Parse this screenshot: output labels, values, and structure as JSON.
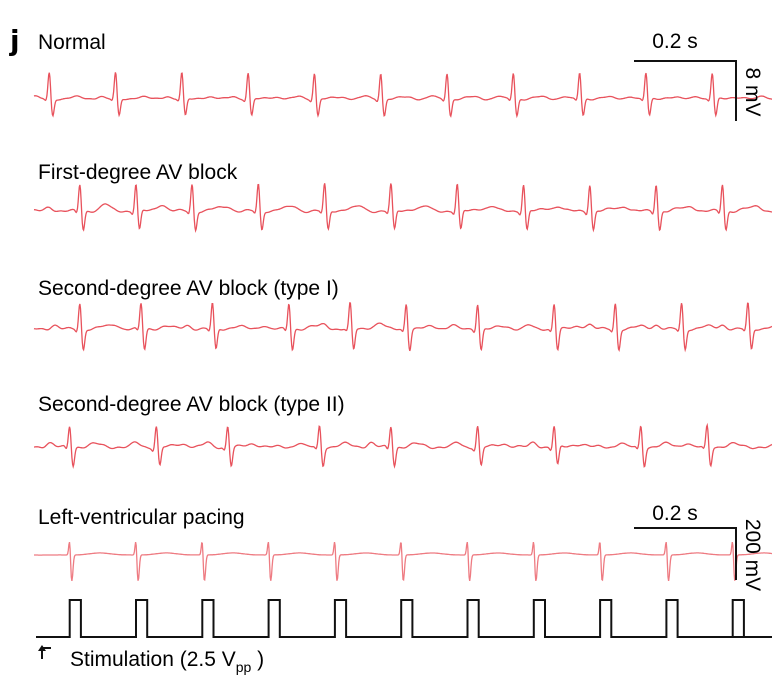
{
  "panel_letter": "j",
  "chart_data": [
    {
      "type": "line",
      "title": "Normal",
      "beat_times_s": [
        0.03,
        0.16,
        0.29,
        0.42,
        0.55,
        0.68,
        0.81,
        0.94,
        1.07,
        1.2,
        1.33,
        1.46,
        1.59
      ],
      "r_amplitude_mV": 4.5,
      "s_amplitude_mV": -3.0,
      "pr_interval_s": 0.03,
      "conducted": [
        true,
        true,
        true,
        true,
        true,
        true,
        true,
        true,
        true,
        true,
        true,
        true,
        true
      ],
      "duration_s": 1.65,
      "scalebar": {
        "time_label": "0.2 s",
        "amp_label": "8 mV"
      }
    },
    {
      "type": "line",
      "title": "First-degree AV block",
      "beat_times_s": [
        0.09,
        0.2,
        0.31,
        0.44,
        0.57,
        0.7,
        0.83,
        0.96,
        1.09,
        1.22,
        1.35,
        1.48,
        1.61
      ],
      "r_amplitude_mV": 3.5,
      "s_amplitude_mV": -2.5,
      "pr_interval_s": 0.06,
      "conducted": [
        true,
        true,
        true,
        true,
        true,
        true,
        true,
        true,
        true,
        true,
        true,
        true,
        true
      ],
      "duration_s": 1.65
    },
    {
      "type": "line",
      "title": "Second-degree AV block (type I)",
      "beat_times_s": [
        0.09,
        0.21,
        0.35,
        0.5,
        0.62,
        0.73,
        0.87,
        1.02,
        1.14,
        1.27,
        1.4,
        1.52
      ],
      "r_amplitude_mV": 3.5,
      "s_amplitude_mV": -2.8,
      "pr_interval_s": 0.05,
      "conducted": [
        true,
        true,
        true,
        true,
        true,
        true,
        true,
        true,
        true,
        true,
        true,
        true
      ],
      "duration_s": 1.65
    },
    {
      "type": "line",
      "title": "Second-degree AV block (type II)",
      "beat_times_s": [
        0.07,
        0.24,
        0.38,
        0.56,
        0.7,
        0.87,
        1.02,
        1.19,
        1.32,
        1.5,
        1.64
      ],
      "r_amplitude_mV": 2.5,
      "s_amplitude_mV": -2.2,
      "pr_interval_s": 0.04,
      "conducted": [
        true,
        true,
        true,
        true,
        true,
        true,
        true,
        true,
        true,
        true,
        true
      ],
      "duration_s": 1.65
    },
    {
      "type": "line",
      "title": "Left-ventricular pacing",
      "beat_times_s": [
        0.07,
        0.2,
        0.33,
        0.46,
        0.59,
        0.72,
        0.85,
        0.98,
        1.11,
        1.24,
        1.37,
        1.5,
        1.63
      ],
      "r_amplitude_mV": 50,
      "s_amplitude_mV": -80,
      "duration_s": 1.65,
      "scalebar": {
        "time_label": "0.2 s",
        "amp_label": "200 mV"
      }
    },
    {
      "type": "line",
      "title": "",
      "pulse_start_times_s": [
        0.07,
        0.2,
        0.33,
        0.46,
        0.59,
        0.72,
        0.85,
        0.98,
        1.11,
        1.24,
        1.37,
        1.5,
        1.63
      ],
      "pulse_width_s": 0.022,
      "amplitude_Vpp": 2.5,
      "stimulation_label": {
        "prefix": "Stimulation (2.5 V",
        "subscript": "pp",
        "suffix": " )"
      }
    }
  ],
  "colors": {
    "trace": "#e8525c",
    "pacing_trace": "#ee7b82",
    "stimulus": "#111111",
    "text": "#111111"
  }
}
